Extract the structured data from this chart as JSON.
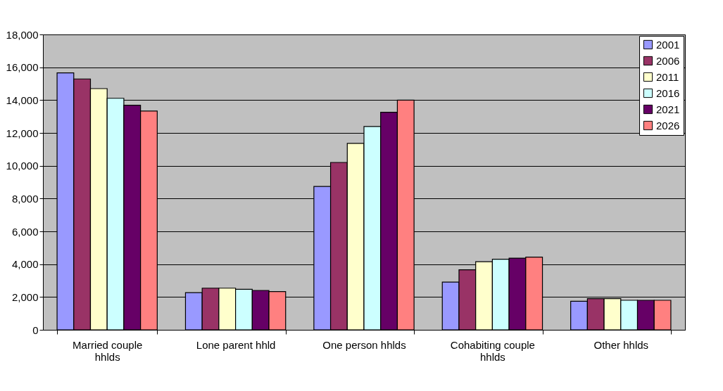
{
  "chart_data": {
    "type": "bar",
    "categories": [
      "Married couple hhlds",
      "Lone parent hhld",
      "One person hhlds",
      "Cohabiting couple hhlds",
      "Other hhlds"
    ],
    "series": [
      {
        "name": "2001",
        "color": "#9999ff",
        "values": [
          15660,
          2270,
          8740,
          2910,
          1740
        ]
      },
      {
        "name": "2006",
        "color": "#993366",
        "values": [
          15290,
          2540,
          10200,
          3660,
          1900
        ]
      },
      {
        "name": "2011",
        "color": "#ffffcc",
        "values": [
          14700,
          2540,
          11360,
          4150,
          1900
        ]
      },
      {
        "name": "2016",
        "color": "#ccffff",
        "values": [
          14110,
          2470,
          12390,
          4300,
          1800
        ]
      },
      {
        "name": "2021",
        "color": "#660066",
        "values": [
          13690,
          2400,
          13260,
          4370,
          1800
        ]
      },
      {
        "name": "2026",
        "color": "#ff8080",
        "values": [
          13330,
          2330,
          14000,
          4430,
          1800
        ]
      }
    ],
    "ylim": [
      0,
      18000
    ],
    "yticks": [
      0,
      {
        "value": 2000,
        "label": "2,000"
      },
      {
        "value": 4000,
        "label": "4,000"
      },
      {
        "value": 6000,
        "label": "6,000"
      },
      {
        "value": 8000,
        "label": "8,000"
      },
      {
        "value": 10000,
        "label": "10,000"
      },
      {
        "value": 12000,
        "label": "12,000"
      },
      {
        "value": 14000,
        "label": "14,000"
      },
      {
        "value": 16000,
        "label": "16,000"
      },
      {
        "value": 18000,
        "label": "18,000"
      }
    ],
    "grid": "y",
    "legend": "top right"
  }
}
